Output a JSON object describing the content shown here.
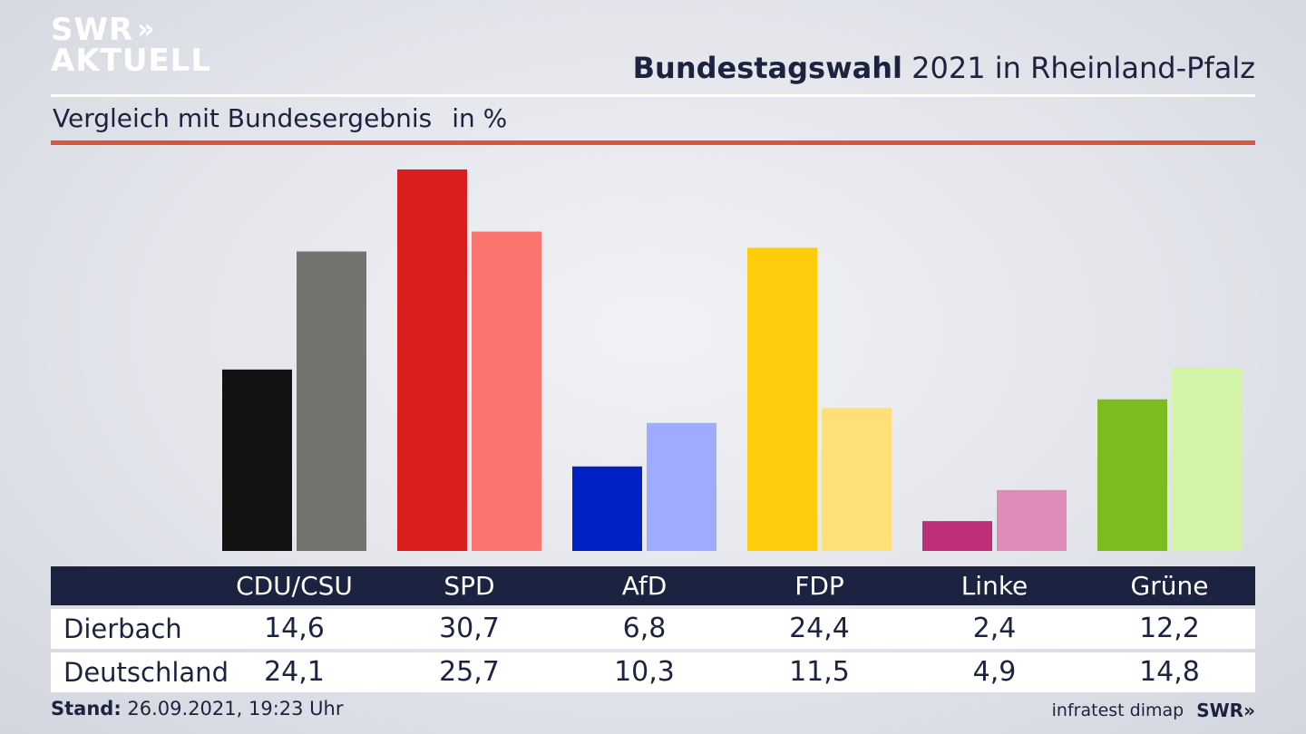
{
  "logo": {
    "line1": "SWR",
    "line2": "AKTUELL",
    "chevrons": "»"
  },
  "header": {
    "title_bold": "Bundestagswahl",
    "title_rest": " 2021 in Rheinland-Pfalz"
  },
  "subtitle": {
    "text": "Vergleich mit Bundesergebnis",
    "unit": "in %"
  },
  "footer": {
    "stand_label": "Stand:",
    "stand_value": " 26.09.2021, 19:23 Uhr",
    "source": "infratest dimap",
    "brand": "SWR",
    "brand_chevrons": "»"
  },
  "chart_data": {
    "type": "bar",
    "categories": [
      "CDU/CSU",
      "SPD",
      "AfD",
      "FDP",
      "Linke",
      "Grüne"
    ],
    "series": [
      {
        "name": "Dierbach",
        "values": [
          14.6,
          30.7,
          6.8,
          24.4,
          2.4,
          12.2
        ],
        "value_labels": [
          "14,6",
          "30,7",
          "6,8",
          "24,4",
          "2,4",
          "12,2"
        ]
      },
      {
        "name": "Deutschland",
        "values": [
          24.1,
          25.7,
          10.3,
          11.5,
          4.9,
          14.8
        ],
        "value_labels": [
          "24,1",
          "25,7",
          "10,3",
          "11,5",
          "4,9",
          "14,8"
        ]
      }
    ],
    "colors": {
      "Dierbach": [
        "#121212",
        "#d81e1e",
        "#0022c4",
        "#fdcc0b",
        "#bf2f78",
        "#7bbd1e"
      ],
      "Deutschland": [
        "#757370",
        "#fd736e",
        "#9eabff",
        "#fde077",
        "#e08cb8",
        "#d3f3a9"
      ]
    },
    "ylim": [
      0,
      30.7
    ],
    "grid": false,
    "legend": "table-below"
  }
}
